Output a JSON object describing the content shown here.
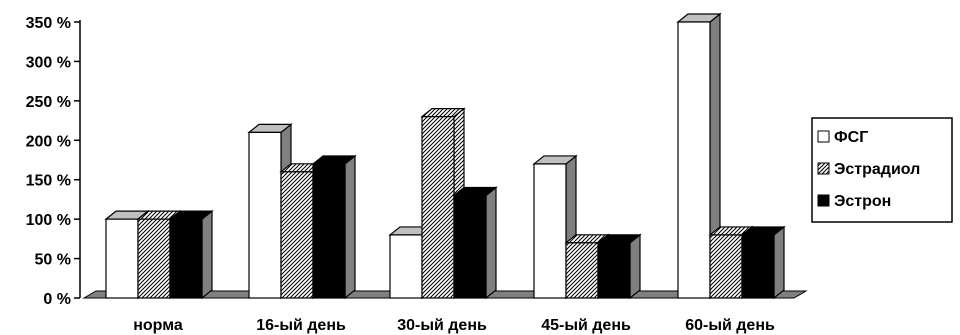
{
  "chart_data": {
    "type": "bar",
    "title": "",
    "xlabel": "",
    "ylabel": "",
    "categories": [
      "норма",
      "16-ый день",
      "30-ый день",
      "45-ый день",
      "60-ый день"
    ],
    "series": [
      {
        "name": "ФСГ",
        "values": [
          100,
          210,
          80,
          170,
          350
        ],
        "fill": "white"
      },
      {
        "name": "Эстрадиол",
        "values": [
          100,
          160,
          230,
          70,
          80
        ],
        "fill": "hatch"
      },
      {
        "name": "Эстрон",
        "values": [
          100,
          170,
          130,
          70,
          80
        ],
        "fill": "black"
      }
    ],
    "ylim": [
      0,
      350
    ],
    "yticks": [
      "0 %",
      "50 %",
      "100 %",
      "150 %",
      "200 %",
      "250 %",
      "300 %",
      "350 %"
    ],
    "grid": false,
    "legend": "right",
    "style": "3d-column",
    "colors": {
      "side": "#808080",
      "floor": "#808080",
      "outline": "#000000"
    }
  }
}
